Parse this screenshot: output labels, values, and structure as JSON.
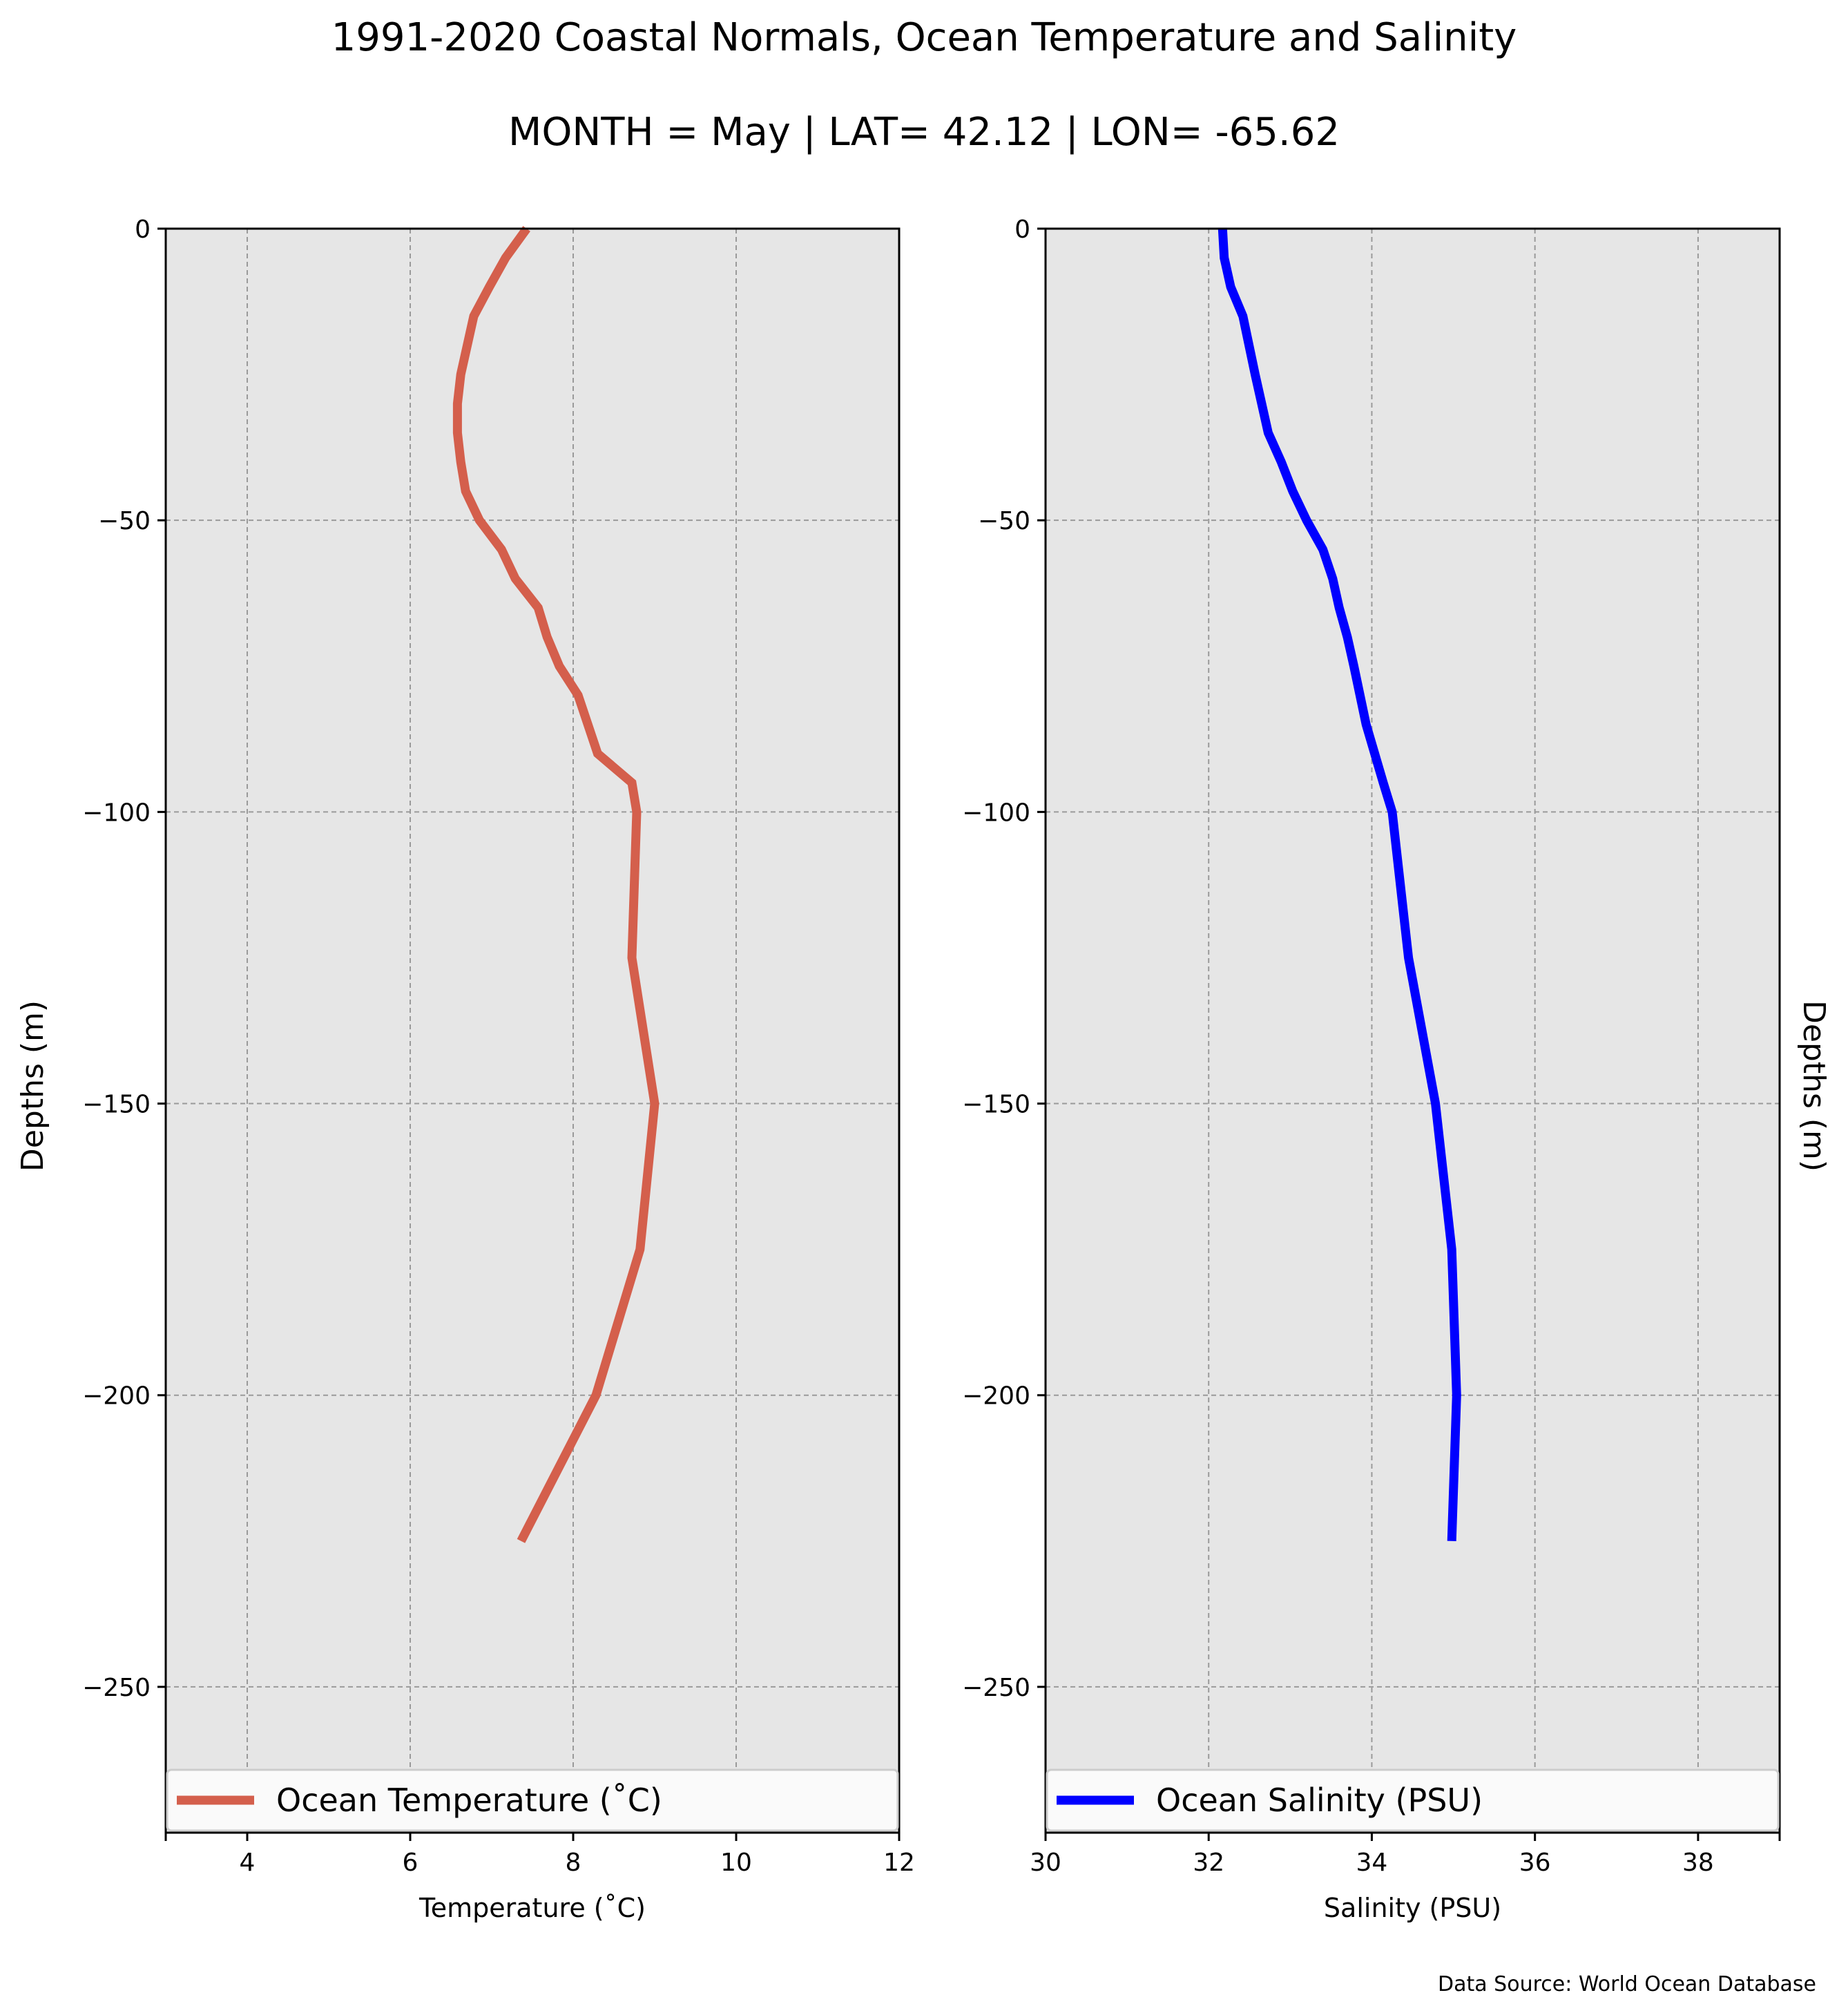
{
  "figure": {
    "title": "1991-2020 Coastal Normals, Ocean Temperature and Salinity",
    "subtitle": "MONTH = May | LAT= 42.12 | LON= -65.62",
    "source_note": "Data Source: World Ocean Database",
    "left_ylabel": "Depths (m)",
    "right_ylabel": "Depths (m)"
  },
  "chart_data": [
    {
      "type": "line",
      "id": "temperature",
      "title": "",
      "xlabel": "Temperature ($^\\circ$C)",
      "xlabel_display": "Temperature (˚C)",
      "ylabel": "Depths (m)",
      "xlim": [
        3,
        12
      ],
      "ylim": [
        -275,
        0
      ],
      "xticks": [
        4,
        6,
        8,
        10,
        12
      ],
      "yticks": [
        0,
        -50,
        -100,
        -150,
        -200,
        -250
      ],
      "ytick_labels": [
        "0",
        "−50",
        "−100",
        "−150",
        "−200",
        "−250"
      ],
      "grid": true,
      "legend_location": "lower center",
      "series": [
        {
          "name": "Ocean Temperature (˚C)",
          "color": "#d45f4c",
          "x": [
            7.43,
            7.17,
            6.97,
            6.78,
            6.62,
            6.58,
            6.58,
            6.62,
            6.68,
            6.85,
            7.12,
            7.29,
            7.57,
            7.68,
            7.83,
            8.06,
            8.3,
            8.72,
            8.78,
            8.72,
            9.0,
            8.82,
            8.28,
            7.36
          ],
          "y": [
            0,
            -5,
            -10,
            -15,
            -25,
            -30,
            -35,
            -40,
            -45,
            -50,
            -55,
            -60,
            -65,
            -70,
            -75,
            -80,
            -90,
            -95,
            -100,
            -125,
            -150,
            -175,
            -200,
            -225
          ]
        }
      ]
    },
    {
      "type": "line",
      "id": "salinity",
      "title": "",
      "xlabel": "Salinity (PSU)",
      "ylabel": "Depths (m)",
      "xlim": [
        30,
        39
      ],
      "ylim": [
        -275,
        0
      ],
      "xticks": [
        30,
        32,
        34,
        36,
        38
      ],
      "yticks": [
        0,
        -50,
        -100,
        -150,
        -200,
        -250
      ],
      "ytick_labels": [
        "0",
        "−50",
        "−100",
        "−150",
        "−200",
        "−250"
      ],
      "grid": true,
      "legend_location": "lower center",
      "series": [
        {
          "name": "Ocean Salinity (PSU)",
          "color": "#0000ff",
          "x": [
            32.17,
            32.19,
            32.27,
            32.42,
            32.57,
            32.73,
            32.89,
            33.03,
            33.2,
            33.4,
            33.52,
            33.6,
            33.7,
            33.78,
            33.93,
            34.14,
            34.25,
            34.45,
            34.78,
            34.98,
            35.04,
            34.98
          ],
          "y": [
            0,
            -5,
            -10,
            -15,
            -25,
            -35,
            -40,
            -45,
            -50,
            -55,
            -60,
            -65,
            -70,
            -75,
            -85,
            -95,
            -100,
            -125,
            -150,
            -175,
            -200,
            -225
          ]
        }
      ]
    }
  ]
}
